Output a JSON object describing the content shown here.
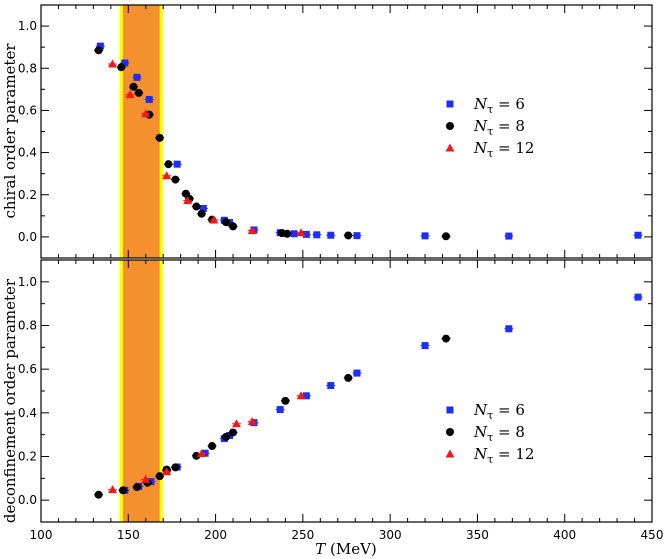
{
  "chart_data": [
    {
      "type": "scatter",
      "title": "",
      "ylabel": "chiral order parameter",
      "xlabel": "",
      "xlim": [
        100,
        450
      ],
      "ylim": [
        -0.1,
        1.1
      ],
      "x_ticks": [
        "100",
        "150",
        "200",
        "250",
        "300",
        "350",
        "400",
        "450"
      ],
      "y_ticks": [
        "0.0",
        "0.2",
        "0.4",
        "0.6",
        "0.8",
        "1.0"
      ],
      "band": {
        "outer": [
          145,
          170
        ],
        "inner": [
          147,
          168
        ],
        "outer_color": "#ffff00",
        "inner_color": "#f5902e"
      },
      "legend_position": "right",
      "series": [
        {
          "name": "Nτ = 6",
          "marker": "square",
          "color": "#1f2ef0",
          "points": [
            [
              134,
              0.905
            ],
            [
              148,
              0.825
            ],
            [
              155,
              0.757
            ],
            [
              162,
              0.652
            ],
            [
              178,
              0.345
            ],
            [
              193,
              0.135
            ],
            [
              205,
              0.079
            ],
            [
              208,
              0.068
            ],
            [
              222,
              0.033
            ],
            [
              237,
              0.02
            ],
            [
              245,
              0.015
            ],
            [
              252,
              0.012
            ],
            [
              258,
              0.01
            ],
            [
              266,
              0.008
            ],
            [
              281,
              0.006
            ],
            [
              320,
              0.005
            ],
            [
              368,
              0.004
            ],
            [
              442,
              0.008
            ]
          ]
        },
        {
          "name": "Nτ = 8",
          "marker": "circle",
          "color": "#000000",
          "points": [
            [
              133,
              0.885
            ],
            [
              146,
              0.805
            ],
            [
              153,
              0.712
            ],
            [
              156,
              0.683
            ],
            [
              162,
              0.58
            ],
            [
              168,
              0.47
            ],
            [
              173,
              0.345
            ],
            [
              177,
              0.272
            ],
            [
              183,
              0.205
            ],
            [
              185,
              0.181
            ],
            [
              189,
              0.144
            ],
            [
              192,
              0.11
            ],
            [
              198,
              0.082
            ],
            [
              206,
              0.07
            ],
            [
              210,
              0.05
            ],
            [
              238,
              0.018
            ],
            [
              241,
              0.015
            ],
            [
              276,
              0.007
            ],
            [
              332,
              0.003
            ]
          ]
        },
        {
          "name": "Nτ = 12",
          "marker": "triangle",
          "color": "#ee1a1a",
          "points": [
            [
              141,
              0.82
            ],
            [
              151,
              0.675
            ],
            [
              160,
              0.585
            ],
            [
              172,
              0.29
            ],
            [
              184,
              0.172
            ],
            [
              199,
              0.08
            ],
            [
              221,
              0.03
            ],
            [
              249,
              0.02
            ]
          ]
        }
      ]
    },
    {
      "type": "scatter",
      "title": "",
      "ylabel": "deconfinement order parameter",
      "xlabel": "T (MeV)",
      "xlim": [
        100,
        450
      ],
      "ylim": [
        -0.1,
        1.1
      ],
      "x_ticks": [
        "100",
        "150",
        "200",
        "250",
        "300",
        "350",
        "400",
        "450"
      ],
      "y_ticks": [
        "0.0",
        "0.2",
        "0.4",
        "0.6",
        "0.8",
        "1.0"
      ],
      "band": {
        "outer": [
          145,
          170
        ],
        "inner": [
          147,
          168
        ],
        "outer_color": "#ffff00",
        "inner_color": "#f5902e"
      },
      "legend_position": "right",
      "series": [
        {
          "name": "Nτ = 6",
          "marker": "square",
          "color": "#1f2ef0",
          "points": [
            [
              148,
              0.045
            ],
            [
              156,
              0.063
            ],
            [
              163,
              0.085
            ],
            [
              172,
              0.135
            ],
            [
              178,
              0.152
            ],
            [
              194,
              0.215
            ],
            [
              205,
              0.282
            ],
            [
              208,
              0.296
            ],
            [
              222,
              0.355
            ],
            [
              237,
              0.415
            ],
            [
              252,
              0.478
            ],
            [
              266,
              0.525
            ],
            [
              281,
              0.582
            ],
            [
              320,
              0.708
            ],
            [
              368,
              0.785
            ],
            [
              442,
              0.93
            ]
          ]
        },
        {
          "name": "Nτ = 8",
          "marker": "circle",
          "color": "#000000",
          "points": [
            [
              133,
              0.025
            ],
            [
              147,
              0.045
            ],
            [
              155,
              0.06
            ],
            [
              161,
              0.08
            ],
            [
              168,
              0.11
            ],
            [
              172,
              0.14
            ],
            [
              177,
              0.15
            ],
            [
              189,
              0.203
            ],
            [
              198,
              0.248
            ],
            [
              206,
              0.29
            ],
            [
              210,
              0.31
            ],
            [
              240,
              0.455
            ],
            [
              276,
              0.56
            ],
            [
              332,
              0.74
            ]
          ]
        },
        {
          "name": "Nτ = 12",
          "marker": "triangle",
          "color": "#ee1a1a",
          "points": [
            [
              141,
              0.048
            ],
            [
              160,
              0.095
            ],
            [
              172,
              0.13
            ],
            [
              192,
              0.213
            ],
            [
              212,
              0.35
            ],
            [
              221,
              0.36
            ],
            [
              249,
              0.478
            ]
          ]
        }
      ]
    }
  ]
}
